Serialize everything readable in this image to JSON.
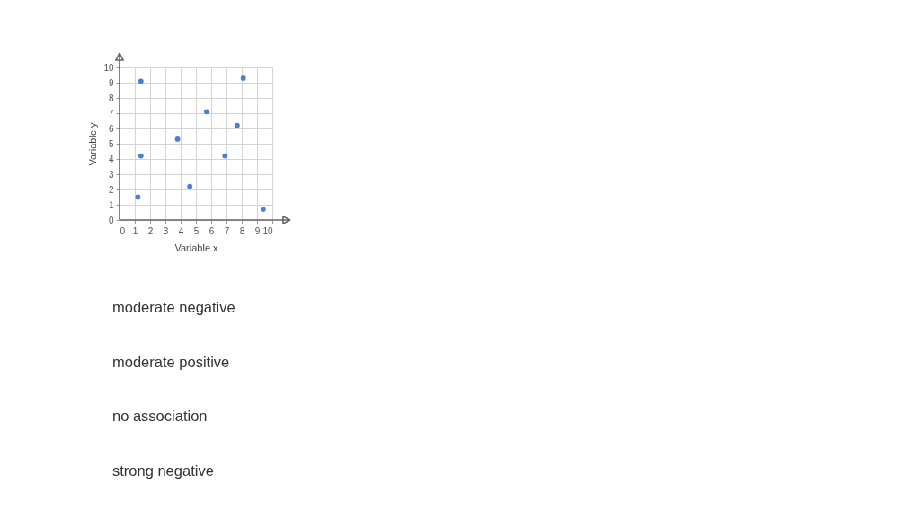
{
  "chart_data": {
    "type": "scatter",
    "xlabel": "Variable x",
    "ylabel": "Variable y",
    "x": [
      1.4,
      1.4,
      1.2,
      3.8,
      4.6,
      5.7,
      6.9,
      7.7,
      8.1,
      9.4
    ],
    "series": [
      {
        "color": "#4a7fd3",
        "values": [
          9.1,
          4.2,
          1.5,
          5.3,
          2.2,
          7.1,
          4.2,
          6.2,
          9.3,
          0.7
        ]
      }
    ],
    "xlim": [
      0,
      10
    ],
    "ylim": [
      0,
      10
    ],
    "xticks": [
      0,
      1,
      2,
      3,
      4,
      5,
      6,
      7,
      8,
      9,
      10
    ],
    "yticks": [
      0,
      1,
      2,
      3,
      4,
      5,
      6,
      7,
      8,
      9,
      10
    ],
    "grid": true,
    "marker": "circle",
    "annotations": [
      "moderate negative",
      "moderate positive",
      "no association",
      "strong negative"
    ]
  }
}
